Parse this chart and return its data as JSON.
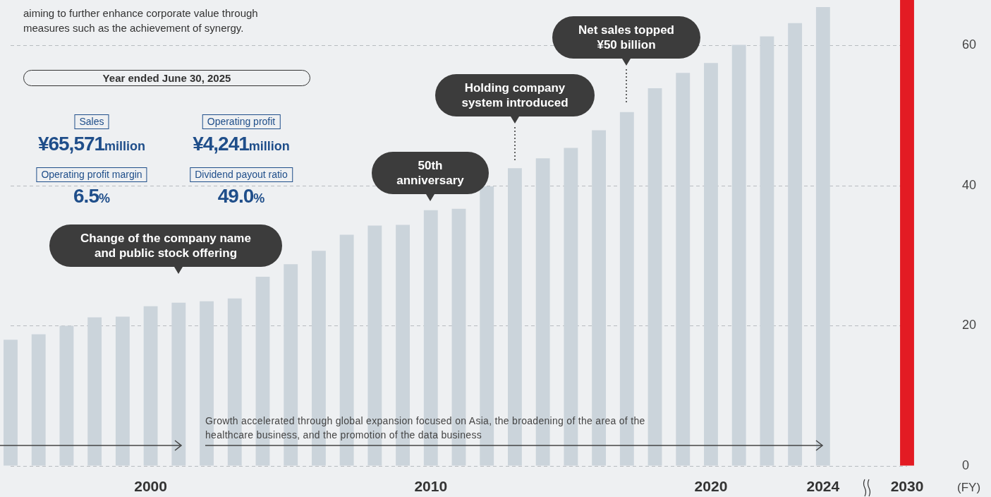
{
  "chart_data": {
    "type": "bar",
    "categories": [
      null,
      null,
      null,
      null,
      null,
      "2000",
      null,
      null,
      null,
      null,
      null,
      null,
      null,
      null,
      null,
      "2010",
      null,
      null,
      null,
      null,
      null,
      null,
      null,
      null,
      null,
      "2020",
      null,
      null,
      null,
      "2024",
      null,
      null,
      "2030"
    ],
    "values": [
      18.0,
      18.8,
      20.0,
      21.2,
      21.3,
      22.8,
      23.3,
      23.5,
      23.9,
      27.0,
      28.8,
      30.7,
      33.0,
      34.3,
      34.4,
      36.5,
      36.7,
      39.9,
      42.5,
      43.9,
      45.4,
      47.9,
      50.5,
      53.9,
      56.1,
      57.5,
      60.1,
      61.3,
      63.2,
      65.5,
      null,
      null,
      66.5
    ],
    "colors": [
      "#cbd4db",
      "#cbd4db",
      "#cbd4db",
      "#cbd4db",
      "#cbd4db",
      "#cbd4db",
      "#cbd4db",
      "#cbd4db",
      "#cbd4db",
      "#cbd4db",
      "#cbd4db",
      "#cbd4db",
      "#cbd4db",
      "#cbd4db",
      "#cbd4db",
      "#cbd4db",
      "#cbd4db",
      "#cbd4db",
      "#cbd4db",
      "#cbd4db",
      "#cbd4db",
      "#cbd4db",
      "#cbd4db",
      "#cbd4db",
      "#cbd4db",
      "#cbd4db",
      "#cbd4db",
      "#cbd4db",
      "#cbd4db",
      "#cbd4db",
      "#cbd4db",
      "#cbd4db",
      "#e31b23"
    ],
    "ylim": [
      0,
      66.5
    ],
    "yticks": [
      0,
      20,
      40,
      60
    ],
    "grid": "y",
    "xlabel": "(FY)",
    "annotations": [
      "aiming to further enhance corporate value through measures such as the achievement of synergy.",
      "Year ended June 30, 2025",
      "Sales",
      "¥65,571million",
      "Operating profit",
      "¥4,241million",
      "Operating profit margin",
      "6.5%",
      "Dividend payout ratio",
      "49.0%",
      "Change of the company name and public stock offering",
      "50th anniversary",
      "Holding company system introduced",
      "Net sales topped ¥50 billion",
      "Growth accelerated through global expansion focused on Asia, the broadening of the area of the healthcare business, and the promotion of the data business"
    ]
  }
}
